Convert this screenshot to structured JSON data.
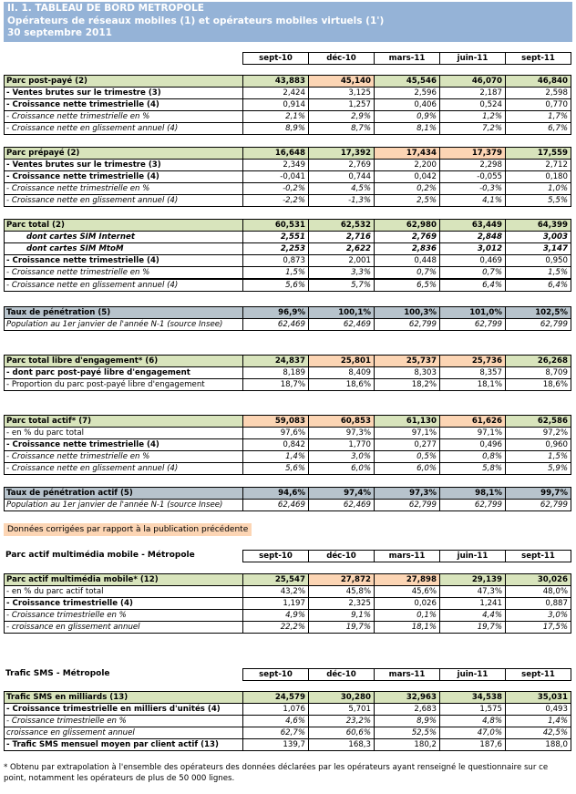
{
  "header": {
    "title": "II. 1. TABLEAU DE BORD METROPOLE",
    "subtitle": "Opérateurs de réseaux mobiles (1) et opérateurs mobiles virtuels (1')",
    "date": "30 septembre 2011"
  },
  "main": {
    "columns": [
      "sept-10",
      "déc-10",
      "mars-11",
      "juin-11",
      "sept-11"
    ],
    "groups": [
      [
        {
          "label": "Parc post-payé (2)",
          "values": [
            "43,883",
            "45,140",
            "45,546",
            "46,070",
            "46,840"
          ]
        },
        {
          "label": "- Ventes brutes sur le trimestre (3)",
          "values": [
            "2,424",
            "3,125",
            "2,596",
            "2,187",
            "2,598"
          ]
        },
        {
          "label": "- Croissance nette trimestrielle (4)",
          "values": [
            "0,914",
            "1,257",
            "0,406",
            "0,524",
            "0,770"
          ]
        },
        {
          "label": "- Croissance nette trimestrielle en %",
          "values": [
            "2,1%",
            "2,9%",
            "0,9%",
            "1,2%",
            "1,7%"
          ]
        },
        {
          "label": "- Croissance nette en glissement annuel (4)",
          "values": [
            "8,9%",
            "8,7%",
            "8,1%",
            "7,2%",
            "6,7%"
          ]
        }
      ],
      [
        {
          "label": "Parc prépayé (2)",
          "values": [
            "16,648",
            "17,392",
            "17,434",
            "17,379",
            "17,559"
          ]
        },
        {
          "label": "- Ventes brutes sur le trimestre (3)",
          "values": [
            "2,349",
            "2,769",
            "2,200",
            "2,298",
            "2,712"
          ]
        },
        {
          "label": "- Croissance nette trimestrielle (4)",
          "values": [
            "-0,041",
            "0,744",
            "0,042",
            "-0,055",
            "0,180"
          ]
        },
        {
          "label": "- Croissance nette trimestrielle en %",
          "values": [
            "-0,2%",
            "4,5%",
            "0,2%",
            "-0,3%",
            "1,0%"
          ]
        },
        {
          "label": "- Croissance nette en glissement annuel (4)",
          "values": [
            "-2,2%",
            "-1,3%",
            "2,5%",
            "4,1%",
            "5,5%"
          ]
        }
      ],
      [
        {
          "label": "Parc total (2)",
          "values": [
            "60,531",
            "62,532",
            "62,980",
            "63,449",
            "64,399"
          ]
        },
        {
          "label": "dont cartes SIM Internet",
          "values": [
            "2,551",
            "2,716",
            "2,769",
            "2,848",
            "3,003"
          ]
        },
        {
          "label": "dont cartes SIM MtoM",
          "values": [
            "2,253",
            "2,622",
            "2,836",
            "3,012",
            "3,147"
          ]
        },
        {
          "label": "- Croissance nette trimestrielle (4)",
          "values": [
            "0,873",
            "2,001",
            "0,448",
            "0,469",
            "0,950"
          ]
        },
        {
          "label": "- Croissance nette trimestrielle en %",
          "values": [
            "1,5%",
            "3,3%",
            "0,7%",
            "0,7%",
            "1,5%"
          ]
        },
        {
          "label": "- Croissance nette en glissement annuel (4)",
          "values": [
            "5,6%",
            "5,7%",
            "6,5%",
            "6,4%",
            "6,4%"
          ]
        }
      ],
      [
        {
          "label": "Taux de pénétration (5)",
          "values": [
            "96,9%",
            "100,1%",
            "100,3%",
            "101,0%",
            "102,5%"
          ]
        },
        {
          "label": "Population au 1er janvier de l'année N-1 (source Insee)",
          "values": [
            "62,469",
            "62,469",
            "62,799",
            "62,799",
            "62,799"
          ]
        }
      ],
      [
        {
          "label": "Parc total libre d'engagement* (6)",
          "values": [
            "24,837",
            "25,801",
            "25,737",
            "25,736",
            "26,268"
          ]
        },
        {
          "label": "- dont parc post-payé libre d'engagement",
          "values": [
            "8,189",
            "8,409",
            "8,303",
            "8,357",
            "8,709"
          ]
        },
        {
          "label": "- Proportion du parc post-payé libre d'engagement",
          "values": [
            "18,7%",
            "18,6%",
            "18,2%",
            "18,1%",
            "18,6%"
          ]
        }
      ],
      [
        {
          "label": "Parc total actif* (7)",
          "values": [
            "59,083",
            "60,853",
            "61,130",
            "61,626",
            "62,586"
          ]
        },
        {
          "label": "- en % du parc total",
          "values": [
            "97,6%",
            "97,3%",
            "97,1%",
            "97,1%",
            "97,2%"
          ]
        },
        {
          "label": "- Croissance nette trimestrielle (4)",
          "values": [
            "0,842",
            "1,770",
            "0,277",
            "0,496",
            "0,960"
          ]
        },
        {
          "label": "- Croissance nette trimestrielle en %",
          "values": [
            "1,4%",
            "3,0%",
            "0,5%",
            "0,8%",
            "1,5%"
          ]
        },
        {
          "label": "- Croissance nette en glissement annuel (4)",
          "values": [
            "5,6%",
            "6,0%",
            "6,0%",
            "5,8%",
            "5,9%"
          ]
        }
      ],
      [
        {
          "label": "Taux de pénétration actif (5)",
          "values": [
            "94,6%",
            "97,4%",
            "97,3%",
            "98,1%",
            "99,7%"
          ]
        },
        {
          "label": "Population au 1er janvier de l'année N-1 (source Insee)",
          "values": [
            "62,469",
            "62,469",
            "62,799",
            "62,799",
            "62,799"
          ]
        }
      ]
    ]
  },
  "note": "Données corrigées par rapport à la publication précédente",
  "multimedia": {
    "heading": "Parc actif multimédia mobile - Métropole",
    "columns": [
      "sept-10",
      "déc-10",
      "mars-11",
      "juin-11",
      "sept-11"
    ],
    "groups": [
      [
        {
          "label": "Parc actif multimédia mobile* (12)",
          "values": [
            "25,547",
            "27,872",
            "27,898",
            "29,139",
            "30,026"
          ]
        },
        {
          "label": "- en % du parc actif total",
          "values": [
            "43,2%",
            "45,8%",
            "45,6%",
            "47,3%",
            "48,0%"
          ]
        },
        {
          "label": "- Croissance trimestrielle (4)",
          "values": [
            "1,197",
            "2,325",
            "0,026",
            "1,241",
            "0,887"
          ]
        },
        {
          "label": "- Croissance trimestrielle en %",
          "values": [
            "4,9%",
            "9,1%",
            "0,1%",
            "4,4%",
            "3,0%"
          ]
        },
        {
          "label": "- croissance en glissement annuel",
          "values": [
            "22,2%",
            "19,7%",
            "18,1%",
            "19,7%",
            "17,5%"
          ]
        }
      ]
    ]
  },
  "sms": {
    "heading": "Trafic SMS - Métropole",
    "columns": [
      "sept-10",
      "déc-10",
      "mars-11",
      "juin-11",
      "sept-11"
    ],
    "groups": [
      [
        {
          "label": "Trafic SMS en milliards (13)",
          "values": [
            "24,579",
            "30,280",
            "32,963",
            "34,538",
            "35,031"
          ]
        },
        {
          "label": "- Croissance trimestrielle en milliers d'unités (4)",
          "values": [
            "1,076",
            "5,701",
            "2,683",
            "1,575",
            "0,493"
          ]
        },
        {
          "label": "- Croissance trimestrielle en %",
          "values": [
            "4,6%",
            "23,2%",
            "8,9%",
            "4,8%",
            "1,4%"
          ]
        },
        {
          "label": "croissance en glissement annuel",
          "values": [
            "62,7%",
            "60,6%",
            "52,5%",
            "47,0%",
            "42,5%"
          ]
        },
        {
          "label": "- Trafic SMS mensuel moyen par client actif (13)",
          "values": [
            "139,7",
            "168,3",
            "180,2",
            "187,6",
            "188,0"
          ]
        }
      ]
    ]
  },
  "footnote": "* Obtenu par extrapolation à l'ensemble des opérateurs des données déclarées par les opérateurs ayant renseigné le questionnaire sur ce point, notamment les opérateurs de plus de 50 000 lignes."
}
